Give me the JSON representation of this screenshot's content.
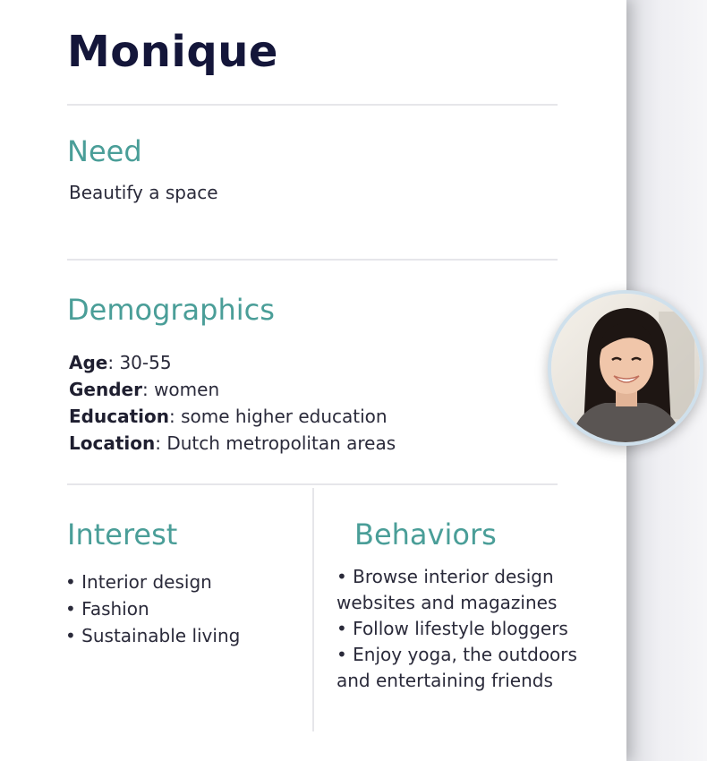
{
  "persona": {
    "name": "Monique"
  },
  "need": {
    "heading": "Need",
    "text": "Beautify a space"
  },
  "demographics": {
    "heading": "Demographics",
    "items": [
      {
        "label": "Age",
        "value": ": 30-55"
      },
      {
        "label": "Gender",
        "value": ": women"
      },
      {
        "label": "Education",
        "value": ": some higher education"
      },
      {
        "label": "Location",
        "value": ": Dutch metropolitan areas"
      }
    ]
  },
  "interest": {
    "heading": "Interest",
    "items": [
      "• Interior design",
      "• Fashion",
      "• Sustainable living"
    ]
  },
  "behaviors": {
    "heading": "Behaviors",
    "lines": [
      "• Browse interior design",
      "websites and magazines",
      "• Follow lifestyle bloggers",
      "• Enjoy yoga, the outdoors",
      "and entertaining friends"
    ]
  },
  "colors": {
    "accent": "#4a9e98",
    "title": "#14163a"
  },
  "avatar": {
    "icon": "person-photo-avatar"
  }
}
